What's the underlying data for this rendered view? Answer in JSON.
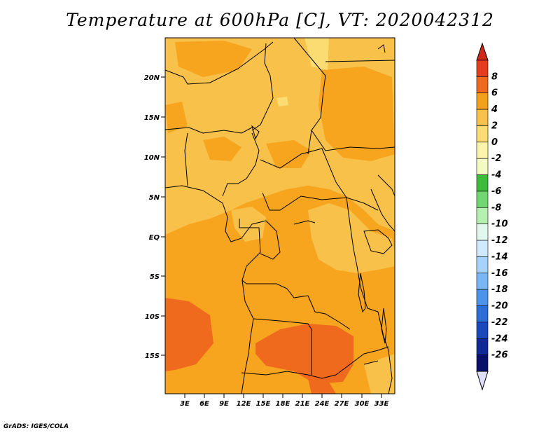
{
  "title": "Temperature at 600hPa [C], VT: 2020042312",
  "credit": "GrADS: IGES/COLA",
  "map": {
    "lat_labels": [
      "20N",
      "15N",
      "10N",
      "5N",
      "EQ",
      "5S",
      "10S",
      "15S"
    ],
    "lon_labels": [
      "3E",
      "6E",
      "9E",
      "12E",
      "15E",
      "18E",
      "21E",
      "24E",
      "27E",
      "30E",
      "33E"
    ]
  },
  "colorbar": {
    "labels": [
      "8",
      "6",
      "4",
      "2",
      "0",
      "-2",
      "-4",
      "-6",
      "-8",
      "-10",
      "-12",
      "-14",
      "-16",
      "-18",
      "-20",
      "-22",
      "-24",
      "-26"
    ],
    "colors": [
      "#e63d1f",
      "#f06a1e",
      "#f5a01b",
      "#f8c14a",
      "#fbdc72",
      "#fdf3ad",
      "#f4fbc2",
      "#3dbb3d",
      "#72d672",
      "#b6f0b0",
      "#e2f8ee",
      "#cfeaff",
      "#a6d3fb",
      "#7ab6f4",
      "#4e93ea",
      "#2d6dd8",
      "#1848bc",
      "#0f2a98",
      "#08106a"
    ],
    "top_arrow_color": "#d0281a",
    "bottom_arrow_color": "#dde0f8"
  }
}
